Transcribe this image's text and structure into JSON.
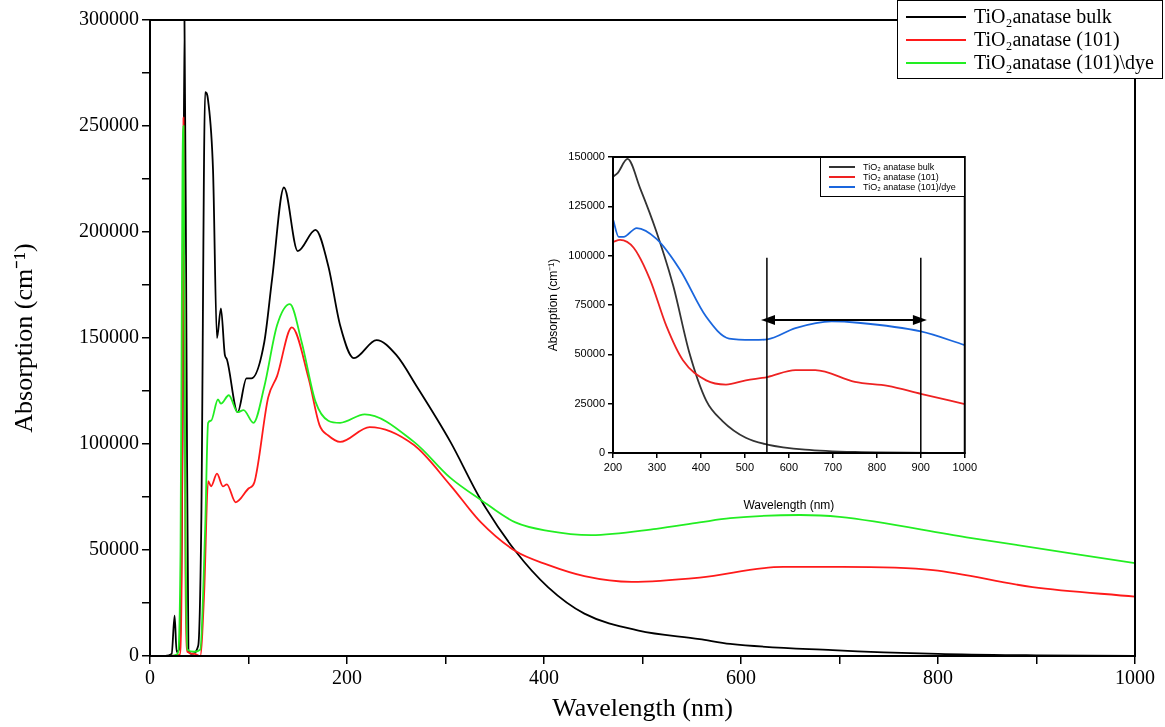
{
  "chart_data": [
    {
      "type": "line",
      "xlabel": "Wavelength (nm)",
      "ylabel": "Absorption (cm⁻¹)",
      "xlim": [
        0,
        1000
      ],
      "xticks": [
        0,
        {
          "value": 100,
          "label": null
        },
        200,
        {
          "value": 300,
          "label": null
        },
        400,
        {
          "value": 500,
          "label": null
        },
        600,
        {
          "value": 700,
          "label": null
        },
        800,
        {
          "value": 900,
          "label": null
        },
        1000
      ],
      "ylim": [
        0,
        300000
      ],
      "yticks": [
        0,
        {
          "value": 25000,
          "label": null
        },
        50000,
        {
          "value": 75000,
          "label": null
        },
        100000,
        {
          "value": 125000,
          "label": null
        },
        150000,
        {
          "value": 175000,
          "label": null
        },
        200000,
        {
          "value": 225000,
          "label": null
        },
        250000,
        {
          "value": 275000,
          "label": null
        },
        300000
      ],
      "grid": false,
      "legend": "top right",
      "series": [
        {
          "name": "TiO₂anatase bulk",
          "color": "#000000",
          "x": [
            15,
            22,
            25,
            27,
            30,
            33,
            35,
            37,
            39,
            42,
            49,
            52,
            56,
            59,
            64,
            68,
            72,
            76,
            78,
            89,
            98,
            103,
            116,
            124,
            136,
            150,
            168,
            181,
            193,
            207,
            230,
            250,
            271,
            305,
            336,
            371,
            404,
            441,
            496,
            558,
            589,
            693,
            800,
            900,
            1000
          ],
          "values": [
            0,
            1000,
            19000,
            2000,
            4000,
            100000,
            300000,
            150000,
            3000,
            1000,
            5000,
            60000,
            266000,
            262000,
            229000,
            150000,
            164000,
            142000,
            140000,
            115000,
            131000,
            131000,
            148000,
            178000,
            221000,
            191000,
            201000,
            184000,
            156000,
            140500,
            149000,
            142000,
            127000,
            101000,
            73600,
            49500,
            32500,
            20000,
            12000,
            8000,
            5700,
            2800,
            1000,
            300,
            0
          ]
        },
        {
          "name": "TiO₂anatase (101)",
          "color": "#ff1a1a",
          "x": [
            20,
            30,
            32,
            34,
            36,
            38,
            45,
            51,
            55,
            59,
            62,
            68,
            74,
            78,
            87,
            100,
            106,
            120,
            129,
            144,
            161,
            172,
            181,
            193,
            223,
            268,
            305,
            336,
            371,
            404,
            441,
            489,
            558,
            643,
            703,
            795,
            896,
            1000
          ],
          "values": [
            0,
            500,
            30000,
            254000,
            40000,
            2000,
            1000,
            0,
            30000,
            82500,
            80000,
            86000,
            80000,
            81000,
            72500,
            79000,
            82000,
            122000,
            132000,
            155000,
            131000,
            109000,
            104000,
            101000,
            108000,
            99500,
            80500,
            63000,
            49500,
            43000,
            37700,
            35000,
            37000,
            42000,
            42000,
            40500,
            32500,
            28000
          ]
        },
        {
          "name": "TiO₂anatase (101)\\dye",
          "color": "#22ee22",
          "x": [
            20,
            28,
            31,
            33,
            34,
            36,
            38,
            45,
            51,
            56,
            59,
            62,
            69,
            72,
            80,
            89,
            95,
            105,
            116,
            129,
            142,
            154,
            168,
            181,
            193,
            218,
            268,
            305,
            336,
            371,
            404,
            448,
            514,
            558,
            589,
            660,
            700,
            829,
            1000
          ],
          "values": [
            0,
            1000,
            50000,
            230000,
            250000,
            60000,
            3000,
            2000,
            3000,
            60000,
            110000,
            111000,
            121000,
            119000,
            123000,
            115000,
            116000,
            110000,
            127000,
            156000,
            166000,
            148000,
            120000,
            111000,
            110000,
            114000,
            101000,
            84000,
            73600,
            63000,
            59000,
            57000,
            60000,
            63000,
            65000,
            66500,
            65600,
            56000,
            43800
          ]
        }
      ]
    },
    {
      "type": "line",
      "xlabel": "Wavelength (nm)",
      "ylabel": "Absorption (cm⁻¹)",
      "xlim": [
        200,
        1000
      ],
      "xticks": [
        200,
        300,
        400,
        500,
        600,
        700,
        800,
        900,
        1000
      ],
      "ylim": [
        0,
        150000
      ],
      "yticks": [
        0,
        25000,
        50000,
        75000,
        100000,
        125000,
        150000
      ],
      "grid": false,
      "legend": "top right",
      "ref_lines": [
        {
          "axis": "x",
          "value": 550
        },
        {
          "axis": "x",
          "value": 900
        }
      ],
      "series": [
        {
          "name": "TiO₂ anatase bulk",
          "color": "#333333",
          "x": [
            200,
            211,
            233,
            262,
            299,
            337,
            374,
            412,
            449,
            502,
            551,
            637,
            750,
            1000
          ],
          "values": [
            140000,
            142000,
            149000,
            134000,
            112000,
            84700,
            50500,
            26500,
            16200,
            7700,
            4300,
            1700,
            500,
            0
          ]
        },
        {
          "name": "TiO₂ anatase (101)",
          "color": "#ee2222",
          "x": [
            200,
            216,
            247,
            284,
            322,
            359,
            412,
            457,
            502,
            551,
            615,
            660,
            750,
            825,
            900,
            1000
          ],
          "values": [
            107000,
            108000,
            104000,
            88000,
            64000,
            47000,
            36800,
            34700,
            36800,
            38500,
            42000,
            42000,
            36000,
            34000,
            30000,
            24800
          ]
        },
        {
          "name": "TiO₂ anatase (101)/dye",
          "color": "#1a66dd",
          "x": [
            200,
            213,
            224,
            254,
            299,
            352,
            412,
            464,
            517,
            551,
            615,
            697,
            757,
            900,
            1000
          ],
          "values": [
            118500,
            109500,
            109500,
            114000,
            108500,
            93000,
            69000,
            58000,
            57300,
            57600,
            63300,
            66700,
            66000,
            61600,
            54700
          ]
        }
      ]
    }
  ]
}
